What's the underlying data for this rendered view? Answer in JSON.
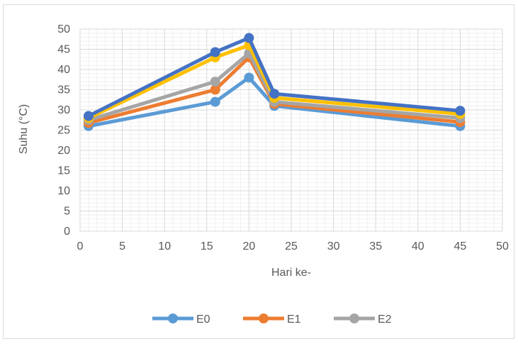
{
  "chart_data": {
    "type": "line",
    "title": "",
    "xlabel": "Hari ke-",
    "ylabel": "Suhu (°C)",
    "xlim": [
      0,
      50
    ],
    "ylim": [
      0,
      50
    ],
    "x_ticks": [
      0,
      5,
      10,
      15,
      20,
      25,
      30,
      35,
      40,
      45,
      50
    ],
    "y_ticks": [
      0,
      5,
      10,
      15,
      20,
      25,
      30,
      35,
      40,
      45,
      50
    ],
    "grid": true,
    "legend_position": "bottom",
    "x": [
      1,
      16,
      20,
      23,
      45
    ],
    "series": [
      {
        "name": "E0",
        "color": "#5B9BD5",
        "legend": true,
        "values": [
          26,
          32,
          38,
          31,
          26
        ]
      },
      {
        "name": "E1",
        "color": "#ED7D31",
        "legend": true,
        "values": [
          26.8,
          35,
          43,
          31.5,
          27
        ]
      },
      {
        "name": "E2",
        "color": "#A5A5A5",
        "legend": true,
        "values": [
          27.5,
          37,
          44,
          32,
          28
        ]
      },
      {
        "color": "#FFC000",
        "legend": false,
        "values": [
          28,
          43,
          46,
          33,
          29
        ]
      },
      {
        "color": "#4472C4",
        "legend": false,
        "values": [
          28.5,
          44.3,
          47.8,
          34,
          29.8
        ]
      }
    ]
  }
}
